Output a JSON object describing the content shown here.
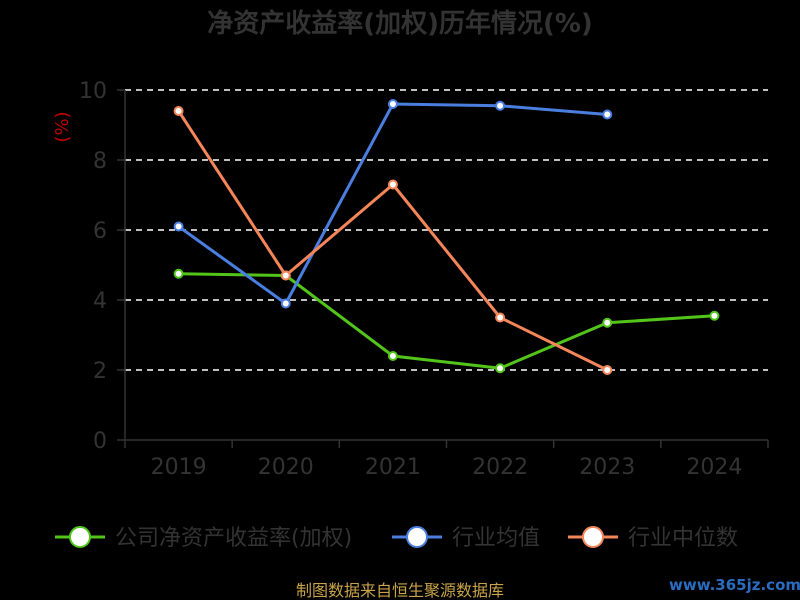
{
  "chart_data": {
    "type": "line",
    "title": "净资产收益率(加权)历年情况(%)",
    "unit_label": "(%)",
    "categories": [
      "2019",
      "2020",
      "2021",
      "2022",
      "2023",
      "2024"
    ],
    "ylim": [
      0,
      10
    ],
    "yticks": [
      0,
      2,
      4,
      6,
      8,
      10
    ],
    "grid": true,
    "legend_position": "bottom",
    "series": [
      {
        "name": "公司净资产收益率(加权)",
        "color": "#52c41a",
        "values": [
          4.75,
          4.7,
          2.4,
          2.05,
          3.35,
          3.55
        ]
      },
      {
        "name": "行业均值",
        "color": "#4a7fe0",
        "values": [
          6.1,
          3.9,
          9.6,
          9.55,
          9.3,
          null
        ]
      },
      {
        "name": "行业中位数",
        "color": "#f4865a",
        "values": [
          9.4,
          4.7,
          7.3,
          3.5,
          2.0,
          null
        ]
      }
    ]
  },
  "footer": {
    "source": "制图数据来自恒生聚源数据库",
    "watermark": "www.365jz.com"
  }
}
